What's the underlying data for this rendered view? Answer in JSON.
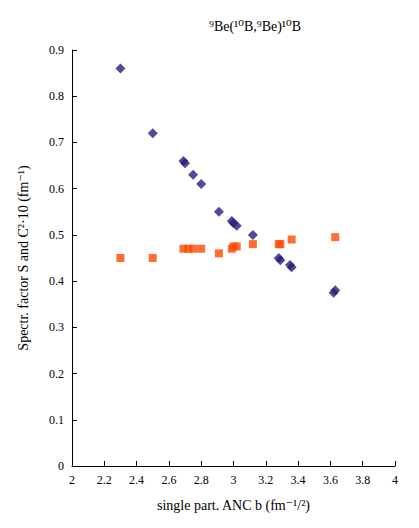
{
  "chart_data": {
    "type": "scatter",
    "title": "⁹Be(¹⁰B,⁹Be)¹⁰B",
    "x_label": "single part. ANC b (fm⁻¹/²)",
    "y_label": "Spectr. factor S and C²·10 (fm⁻¹)",
    "xlim": [
      2,
      4
    ],
    "xticks": [
      2,
      2.2,
      2.4,
      2.6,
      2.8,
      3,
      3.2,
      3.4,
      3.6,
      3.8,
      4
    ],
    "ylim": [
      0,
      0.9
    ],
    "yticks": [
      0,
      0.1,
      0.2,
      0.3,
      0.4,
      0.5,
      0.6,
      0.7,
      0.8,
      0.9
    ],
    "grid": false,
    "series": [
      {
        "color": "#2a1b7a",
        "marker": "diamond",
        "x": [
          2.3,
          2.5,
          2.69,
          2.7,
          2.75,
          2.8,
          2.91,
          2.99,
          3.0,
          3.02,
          3.12,
          3.28,
          3.29,
          3.35,
          3.36,
          3.62,
          3.63
        ],
        "values": [
          0.86,
          0.72,
          0.66,
          0.655,
          0.63,
          0.61,
          0.55,
          0.53,
          0.525,
          0.52,
          0.5,
          0.45,
          0.445,
          0.435,
          0.43,
          0.375,
          0.38
        ]
      },
      {
        "color": "#ff4a00",
        "marker": "square",
        "x": [
          2.3,
          2.5,
          2.69,
          2.72,
          2.75,
          2.8,
          2.91,
          2.99,
          3.0,
          3.02,
          3.12,
          3.28,
          3.29,
          3.36,
          3.63
        ],
        "values": [
          0.45,
          0.45,
          0.47,
          0.47,
          0.47,
          0.47,
          0.46,
          0.47,
          0.475,
          0.475,
          0.48,
          0.48,
          0.48,
          0.49,
          0.495
        ]
      }
    ]
  }
}
